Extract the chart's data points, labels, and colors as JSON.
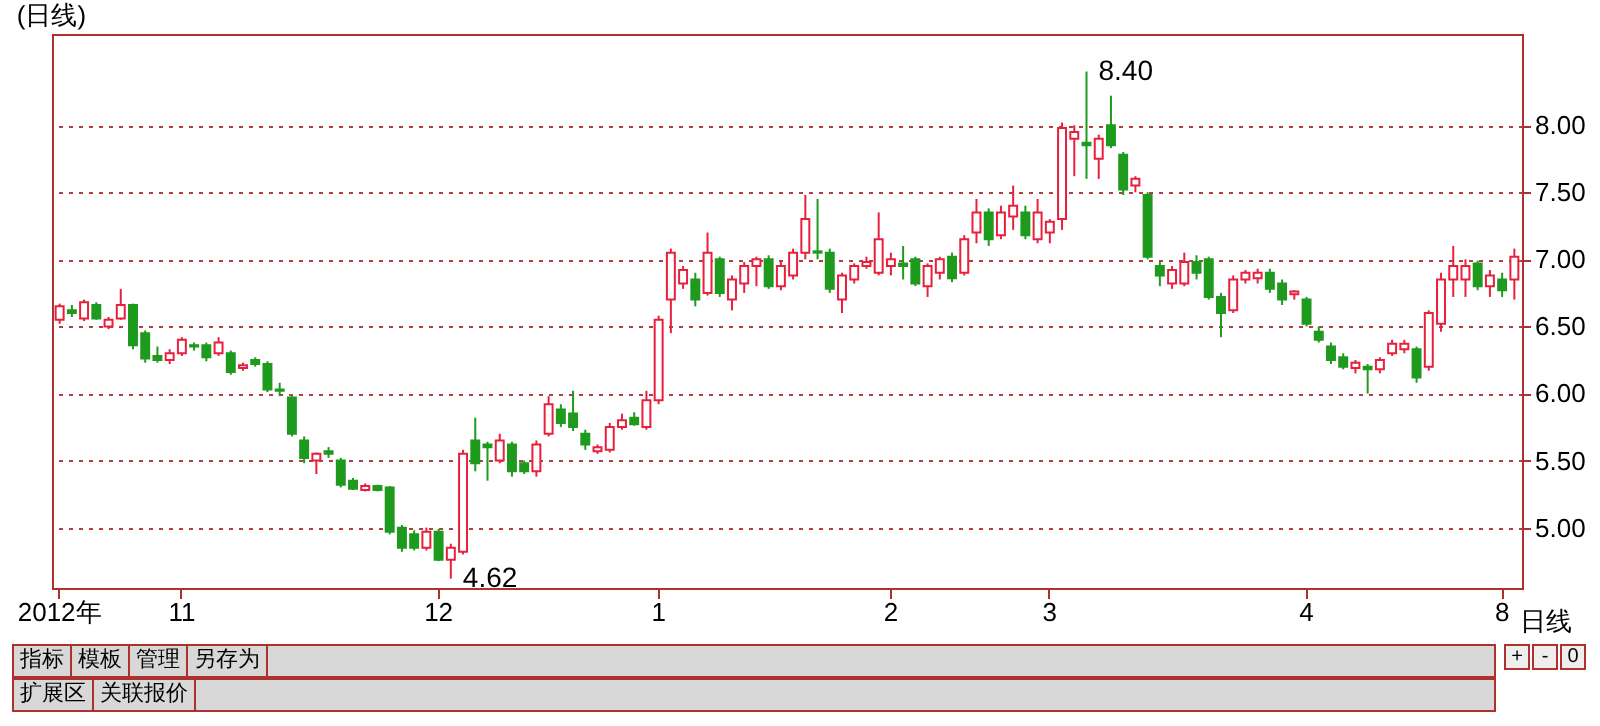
{
  "chart_data": {
    "type": "candlestick",
    "title": "(日线)",
    "categories": [
      "2012年",
      null,
      null,
      null,
      null,
      null,
      null,
      null,
      null,
      null,
      "11",
      null,
      null,
      null,
      null,
      null,
      null,
      null,
      null,
      null,
      null,
      null,
      null,
      null,
      null,
      null,
      null,
      null,
      null,
      null,
      null,
      "12",
      null,
      null,
      null,
      null,
      null,
      null,
      null,
      null,
      null,
      null,
      null,
      null,
      null,
      null,
      null,
      null,
      null,
      "1",
      null,
      null,
      null,
      null,
      null,
      null,
      null,
      null,
      null,
      null,
      null,
      null,
      null,
      null,
      null,
      null,
      null,
      null,
      "2",
      null,
      null,
      null,
      null,
      null,
      null,
      null,
      null,
      null,
      null,
      null,
      null,
      "3",
      null,
      null,
      null,
      null,
      null,
      null,
      null,
      null,
      null,
      null,
      null,
      null,
      null,
      null,
      null,
      null,
      null,
      null,
      null,
      null,
      "4",
      null,
      null,
      null,
      null,
      null,
      null,
      null,
      null,
      null,
      null,
      null,
      null,
      null,
      null,
      null,
      "8",
      null
    ],
    "ohlc": [
      [
        6.55,
        6.67,
        6.52,
        6.65
      ],
      [
        6.62,
        6.66,
        6.57,
        6.6
      ],
      [
        6.56,
        6.7,
        6.54,
        6.68
      ],
      [
        6.66,
        6.68,
        6.55,
        6.56
      ],
      [
        6.5,
        6.57,
        6.48,
        6.55
      ],
      [
        6.56,
        6.78,
        6.55,
        6.66
      ],
      [
        6.66,
        6.67,
        6.33,
        6.36
      ],
      [
        6.45,
        6.47,
        6.23,
        6.26
      ],
      [
        6.28,
        6.35,
        6.23,
        6.25
      ],
      [
        6.25,
        6.33,
        6.22,
        6.3
      ],
      [
        6.3,
        6.42,
        6.28,
        6.4
      ],
      [
        6.36,
        6.38,
        6.32,
        6.35
      ],
      [
        6.36,
        6.38,
        6.24,
        6.27
      ],
      [
        6.3,
        6.42,
        6.28,
        6.38
      ],
      [
        6.3,
        6.32,
        6.14,
        6.16
      ],
      [
        6.19,
        6.23,
        6.17,
        6.21
      ],
      [
        6.25,
        6.27,
        6.2,
        6.22
      ],
      [
        6.22,
        6.24,
        6.01,
        6.03
      ],
      [
        6.03,
        6.08,
        5.98,
        6.02
      ],
      [
        5.97,
        5.98,
        5.68,
        5.7
      ],
      [
        5.65,
        5.68,
        5.48,
        5.52
      ],
      [
        5.5,
        5.56,
        5.4,
        5.55
      ],
      [
        5.57,
        5.6,
        5.52,
        5.55
      ],
      [
        5.5,
        5.52,
        5.3,
        5.32
      ],
      [
        5.35,
        5.37,
        5.28,
        5.29
      ],
      [
        5.28,
        5.33,
        5.27,
        5.31
      ],
      [
        5.31,
        5.32,
        5.27,
        5.28
      ],
      [
        5.3,
        5.31,
        4.95,
        4.97
      ],
      [
        5.0,
        5.02,
        4.82,
        4.85
      ],
      [
        4.95,
        4.98,
        4.83,
        4.85
      ],
      [
        4.85,
        5.0,
        4.83,
        4.97
      ],
      [
        4.97,
        4.99,
        4.75,
        4.76
      ],
      [
        4.76,
        4.88,
        4.62,
        4.85
      ],
      [
        4.82,
        5.58,
        4.8,
        5.55
      ],
      [
        5.65,
        5.82,
        5.42,
        5.48
      ],
      [
        5.62,
        5.64,
        5.35,
        5.6
      ],
      [
        5.5,
        5.7,
        5.48,
        5.65
      ],
      [
        5.62,
        5.64,
        5.38,
        5.42
      ],
      [
        5.48,
        5.5,
        5.4,
        5.42
      ],
      [
        5.42,
        5.65,
        5.38,
        5.62
      ],
      [
        5.7,
        5.98,
        5.68,
        5.92
      ],
      [
        5.88,
        5.92,
        5.75,
        5.78
      ],
      [
        5.85,
        6.02,
        5.72,
        5.75
      ],
      [
        5.7,
        5.73,
        5.58,
        5.62
      ],
      [
        5.57,
        5.62,
        5.55,
        5.6
      ],
      [
        5.58,
        5.78,
        5.56,
        5.75
      ],
      [
        5.75,
        5.85,
        5.73,
        5.8
      ],
      [
        5.82,
        5.86,
        5.76,
        5.77
      ],
      [
        5.75,
        6.02,
        5.73,
        5.95
      ],
      [
        5.95,
        6.58,
        5.92,
        6.55
      ],
      [
        6.7,
        7.08,
        6.45,
        7.05
      ],
      [
        6.82,
        6.95,
        6.78,
        6.92
      ],
      [
        6.85,
        6.9,
        6.65,
        6.7
      ],
      [
        6.75,
        7.2,
        6.73,
        7.05
      ],
      [
        7.0,
        7.02,
        6.72,
        6.75
      ],
      [
        6.7,
        6.88,
        6.62,
        6.85
      ],
      [
        6.82,
        6.98,
        6.75,
        6.95
      ],
      [
        6.95,
        7.02,
        6.8,
        7.0
      ],
      [
        7.0,
        7.03,
        6.78,
        6.8
      ],
      [
        6.8,
        6.98,
        6.77,
        6.95
      ],
      [
        6.88,
        7.08,
        6.85,
        7.05
      ],
      [
        7.05,
        7.48,
        7.0,
        7.3
      ],
      [
        7.06,
        7.45,
        7.0,
        7.05
      ],
      [
        7.05,
        7.08,
        6.75,
        6.78
      ],
      [
        6.7,
        6.9,
        6.6,
        6.88
      ],
      [
        6.85,
        6.97,
        6.82,
        6.95
      ],
      [
        6.95,
        7.02,
        6.93,
        6.98
      ],
      [
        6.9,
        7.35,
        6.88,
        7.15
      ],
      [
        6.95,
        7.05,
        6.88,
        7.0
      ],
      [
        6.97,
        7.1,
        6.85,
        6.95
      ],
      [
        7.0,
        7.02,
        6.8,
        6.82
      ],
      [
        6.8,
        6.97,
        6.72,
        6.95
      ],
      [
        6.9,
        7.02,
        6.85,
        7.0
      ],
      [
        7.02,
        7.05,
        6.83,
        6.86
      ],
      [
        6.9,
        7.18,
        6.88,
        7.15
      ],
      [
        7.2,
        7.45,
        7.12,
        7.35
      ],
      [
        7.35,
        7.38,
        7.1,
        7.15
      ],
      [
        7.18,
        7.4,
        7.15,
        7.35
      ],
      [
        7.32,
        7.55,
        7.22,
        7.4
      ],
      [
        7.35,
        7.4,
        7.15,
        7.18
      ],
      [
        7.15,
        7.45,
        7.12,
        7.35
      ],
      [
        7.2,
        7.3,
        7.12,
        7.28
      ],
      [
        7.3,
        8.02,
        7.22,
        7.98
      ],
      [
        7.9,
        8.0,
        7.62,
        7.95
      ],
      [
        7.87,
        8.4,
        7.6,
        7.85
      ],
      [
        7.75,
        7.93,
        7.6,
        7.9
      ],
      [
        8.0,
        8.22,
        7.83,
        7.85
      ],
      [
        7.78,
        7.8,
        7.48,
        7.52
      ],
      [
        7.55,
        7.62,
        7.5,
        7.6
      ],
      [
        7.48,
        7.5,
        7.0,
        7.02
      ],
      [
        6.95,
        6.98,
        6.8,
        6.88
      ],
      [
        6.82,
        6.95,
        6.78,
        6.92
      ],
      [
        6.82,
        7.05,
        6.8,
        6.98
      ],
      [
        6.98,
        7.03,
        6.85,
        6.9
      ],
      [
        7.0,
        7.02,
        6.7,
        6.72
      ],
      [
        6.72,
        6.75,
        6.42,
        6.6
      ],
      [
        6.62,
        6.88,
        6.6,
        6.85
      ],
      [
        6.85,
        6.92,
        6.82,
        6.9
      ],
      [
        6.86,
        6.93,
        6.82,
        6.9
      ],
      [
        6.9,
        6.93,
        6.75,
        6.78
      ],
      [
        6.82,
        6.85,
        6.66,
        6.7
      ],
      [
        6.74,
        6.77,
        6.7,
        6.76
      ],
      [
        6.7,
        6.72,
        6.5,
        6.52
      ],
      [
        6.46,
        6.5,
        6.38,
        6.4
      ],
      [
        6.35,
        6.38,
        6.22,
        6.25
      ],
      [
        6.27,
        6.3,
        6.18,
        6.2
      ],
      [
        6.19,
        6.25,
        6.15,
        6.23
      ],
      [
        6.2,
        6.22,
        6.0,
        6.18
      ],
      [
        6.18,
        6.27,
        6.15,
        6.25
      ],
      [
        6.3,
        6.4,
        6.28,
        6.37
      ],
      [
        6.33,
        6.4,
        6.3,
        6.37
      ],
      [
        6.33,
        6.35,
        6.08,
        6.12
      ],
      [
        6.2,
        6.62,
        6.17,
        6.6
      ],
      [
        6.52,
        6.9,
        6.46,
        6.85
      ],
      [
        6.85,
        7.1,
        6.72,
        6.95
      ],
      [
        6.85,
        7.0,
        6.72,
        6.95
      ],
      [
        6.97,
        6.99,
        6.77,
        6.8
      ],
      [
        6.8,
        6.92,
        6.72,
        6.88
      ],
      [
        6.85,
        6.9,
        6.72,
        6.77
      ],
      [
        6.85,
        7.08,
        6.7,
        7.02
      ]
    ],
    "colors": [
      "#e8203c",
      "#1e9a1e",
      "#e8203c",
      "#1e9a1e",
      "#e8203c",
      "#e8203c",
      "#1e9a1e",
      "#1e9a1e",
      "#1e9a1e",
      "#e8203c",
      "#e8203c",
      "#1e9a1e",
      "#1e9a1e",
      "#e8203c",
      "#1e9a1e",
      "#e8203c",
      "#1e9a1e",
      "#1e9a1e",
      "#1e9a1e",
      "#1e9a1e",
      "#1e9a1e",
      "#e8203c",
      "#1e9a1e",
      "#1e9a1e",
      "#1e9a1e",
      "#e8203c",
      "#1e9a1e",
      "#1e9a1e",
      "#1e9a1e",
      "#1e9a1e",
      "#e8203c",
      "#1e9a1e",
      "#e8203c",
      "#e8203c",
      "#1e9a1e",
      "#1e9a1e",
      "#e8203c",
      "#1e9a1e",
      "#1e9a1e",
      "#e8203c",
      "#e8203c",
      "#1e9a1e",
      "#1e9a1e",
      "#1e9a1e",
      "#e8203c",
      "#e8203c",
      "#e8203c",
      "#1e9a1e",
      "#e8203c",
      "#e8203c",
      "#e8203c",
      "#e8203c",
      "#1e9a1e",
      "#e8203c",
      "#1e9a1e",
      "#e8203c",
      "#e8203c",
      "#e8203c",
      "#1e9a1e",
      "#e8203c",
      "#e8203c",
      "#e8203c",
      "#1e9a1e",
      "#1e9a1e",
      "#e8203c",
      "#e8203c",
      "#e8203c",
      "#e8203c",
      "#e8203c",
      "#1e9a1e",
      "#1e9a1e",
      "#e8203c",
      "#e8203c",
      "#1e9a1e",
      "#e8203c",
      "#e8203c",
      "#1e9a1e",
      "#e8203c",
      "#e8203c",
      "#1e9a1e",
      "#e8203c",
      "#e8203c",
      "#e8203c",
      "#e8203c",
      "#1e9a1e",
      "#e8203c",
      "#1e9a1e",
      "#1e9a1e",
      "#e8203c",
      "#1e9a1e",
      "#1e9a1e",
      "#e8203c",
      "#e8203c",
      "#1e9a1e",
      "#1e9a1e",
      "#1e9a1e",
      "#e8203c",
      "#e8203c",
      "#e8203c",
      "#1e9a1e",
      "#1e9a1e",
      "#e8203c",
      "#1e9a1e",
      "#1e9a1e",
      "#1e9a1e",
      "#1e9a1e",
      "#e8203c",
      "#1e9a1e",
      "#e8203c",
      "#e8203c",
      "#e8203c",
      "#1e9a1e",
      "#e8203c",
      "#e8203c",
      "#e8203c",
      "#e8203c",
      "#1e9a1e",
      "#e8203c",
      "#1e9a1e",
      "#e8203c"
    ],
    "ylim": [
      4.55,
      8.68
    ],
    "yticks": [
      {
        "value": 5,
        "label": "5.00"
      },
      {
        "value": 5.5,
        "label": "5.50"
      },
      {
        "value": 6,
        "label": "6.00"
      },
      {
        "value": 6.5,
        "label": "6.50"
      },
      {
        "value": 7,
        "label": "7.00"
      },
      {
        "value": 7.5,
        "label": "7.50"
      },
      {
        "value": 8,
        "label": "8.00"
      }
    ],
    "grid": "y",
    "annotations": [
      "8.40",
      "4.62",
      "日线",
      "+",
      "-",
      "0",
      "指标",
      "模板",
      "管理",
      "另存为",
      "扩展区",
      "关联报价"
    ]
  }
}
